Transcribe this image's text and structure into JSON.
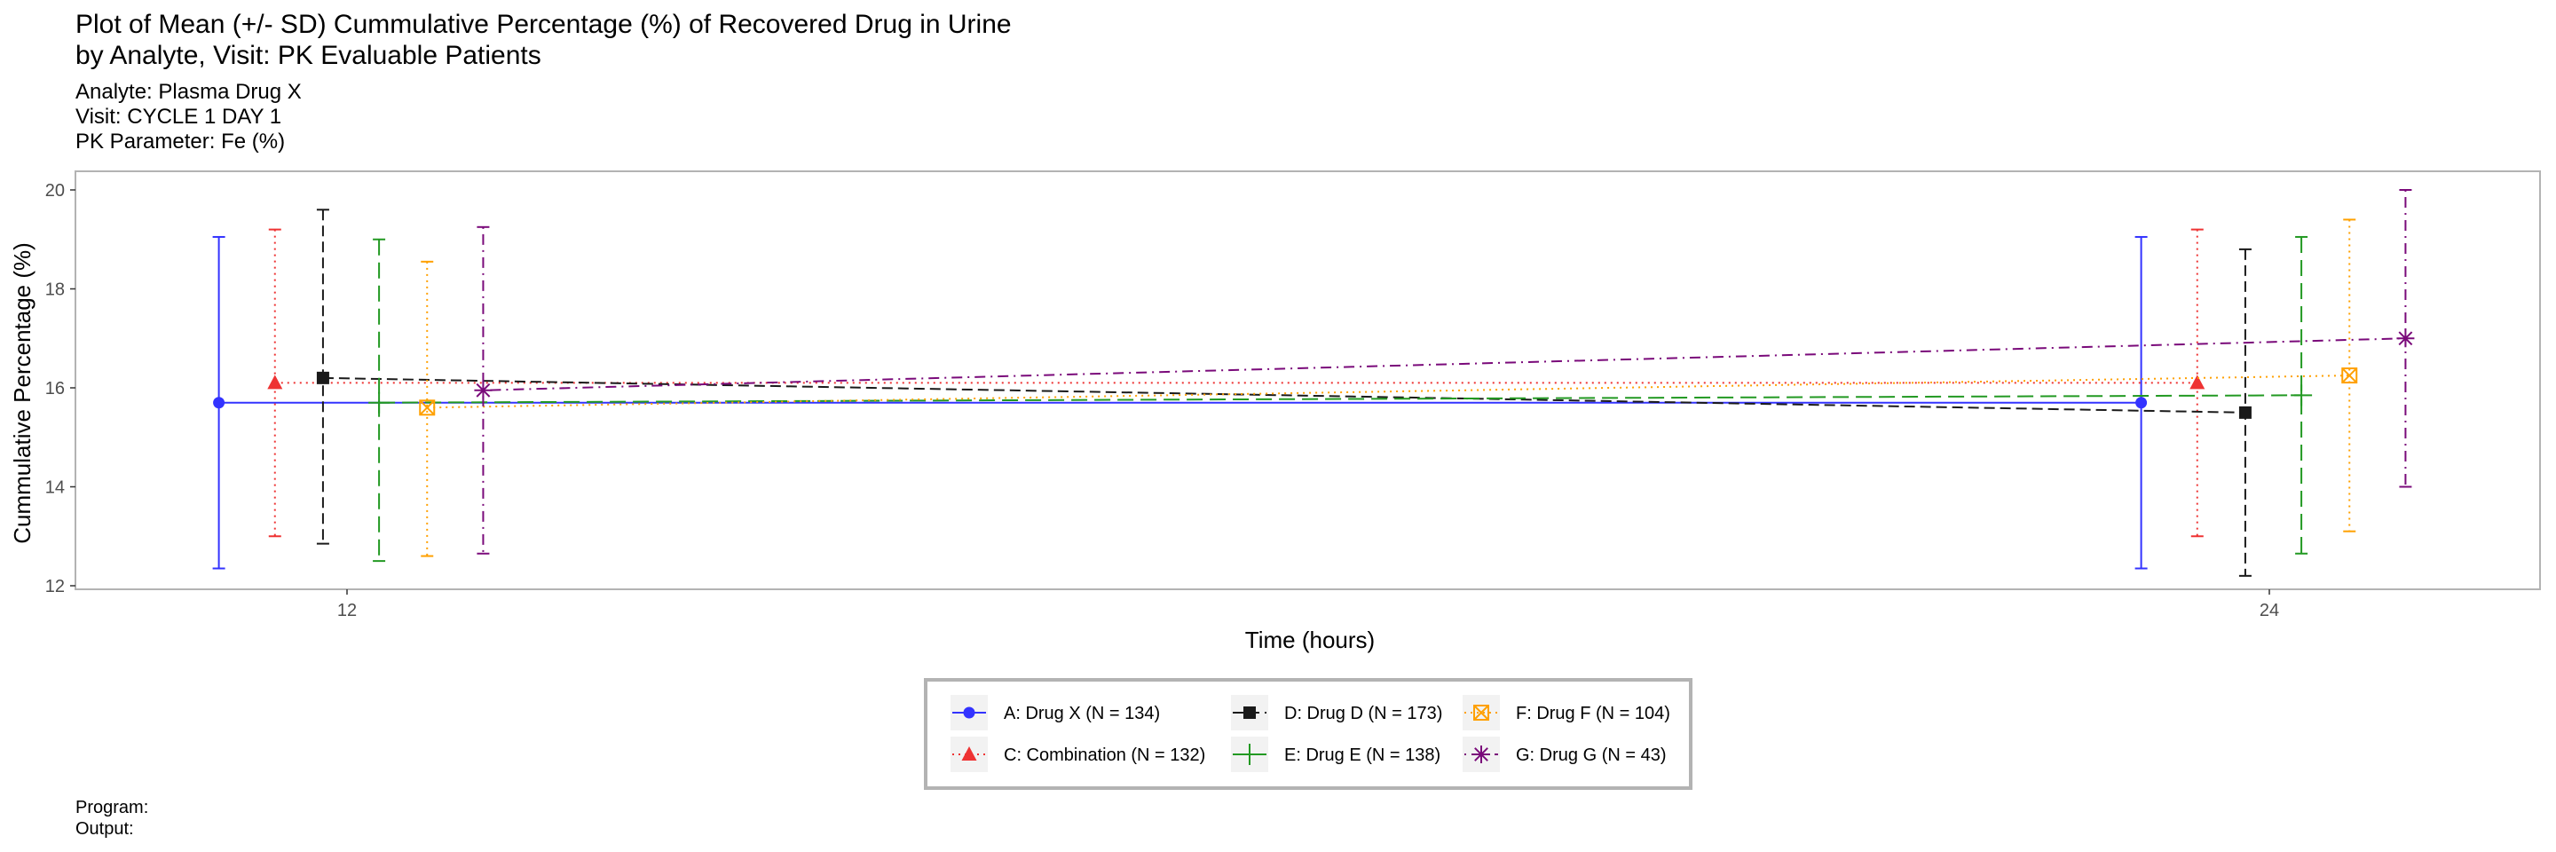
{
  "title": {
    "line1": "Plot of Mean (+/- SD) Cummulative Percentage (%) of Recovered Drug in Urine",
    "line2": "by Analyte, Visit: PK Evaluable Patients"
  },
  "subtitle": {
    "line1": "Analyte: Plasma Drug X",
    "line2": "Visit: CYCLE 1 DAY 1",
    "line3": "PK Parameter: Fe (%)"
  },
  "footnote": {
    "program": "Program:",
    "output": "Output:"
  },
  "chart_data": {
    "type": "line",
    "xlabel": "Time (hours)",
    "ylabel": "Cummulative Percentage (%)",
    "x_ticks": [
      12,
      24
    ],
    "y_ticks": [
      12,
      14,
      16,
      18,
      20
    ],
    "ylim": [
      11.85,
      20.35
    ],
    "grid": false,
    "error_bars": "mean +/- SD",
    "legend_position": "bottom",
    "series": [
      {
        "name": "A: Drug X (N = 134)",
        "color": "#3333ff",
        "dash": "solid",
        "marker": "circle",
        "points": [
          {
            "x": 11.2,
            "mean": 15.7,
            "lower": 12.35,
            "upper": 19.05
          },
          {
            "x": 23.2,
            "mean": 15.7,
            "lower": 12.35,
            "upper": 19.05
          }
        ]
      },
      {
        "name": "C: Combination (N = 132)",
        "color": "#ee3333",
        "dash": "dotted",
        "marker": "triangle",
        "points": [
          {
            "x": 11.55,
            "mean": 16.1,
            "lower": 13.0,
            "upper": 19.2
          },
          {
            "x": 23.55,
            "mean": 16.1,
            "lower": 13.0,
            "upper": 19.2
          }
        ]
      },
      {
        "name": "D: Drug D (N = 173)",
        "color": "#1a1a1a",
        "dash": "dashed",
        "marker": "square",
        "points": [
          {
            "x": 11.85,
            "mean": 16.2,
            "lower": 12.85,
            "upper": 19.6
          },
          {
            "x": 23.85,
            "mean": 15.5,
            "lower": 12.2,
            "upper": 18.8
          }
        ]
      },
      {
        "name": "E: Drug E (N = 138)",
        "color": "#229922",
        "dash": "longdash",
        "marker": "plus",
        "points": [
          {
            "x": 12.2,
            "mean": 15.7,
            "lower": 12.5,
            "upper": 19.0
          },
          {
            "x": 24.2,
            "mean": 15.85,
            "lower": 12.65,
            "upper": 19.05
          }
        ]
      },
      {
        "name": "F: Drug F (N = 104)",
        "color": "#ffa000",
        "dash": "dotted",
        "marker": "boxx",
        "points": [
          {
            "x": 12.5,
            "mean": 15.6,
            "lower": 12.6,
            "upper": 18.55
          },
          {
            "x": 24.5,
            "mean": 16.25,
            "lower": 13.1,
            "upper": 19.4
          }
        ]
      },
      {
        "name": "G: Drug G (N = 43)",
        "color": "#7a0a7a",
        "dash": "dotdash",
        "marker": "star",
        "points": [
          {
            "x": 12.85,
            "mean": 15.95,
            "lower": 12.65,
            "upper": 19.25
          },
          {
            "x": 24.85,
            "mean": 17.0,
            "lower": 14.0,
            "upper": 20.0
          }
        ]
      }
    ]
  }
}
